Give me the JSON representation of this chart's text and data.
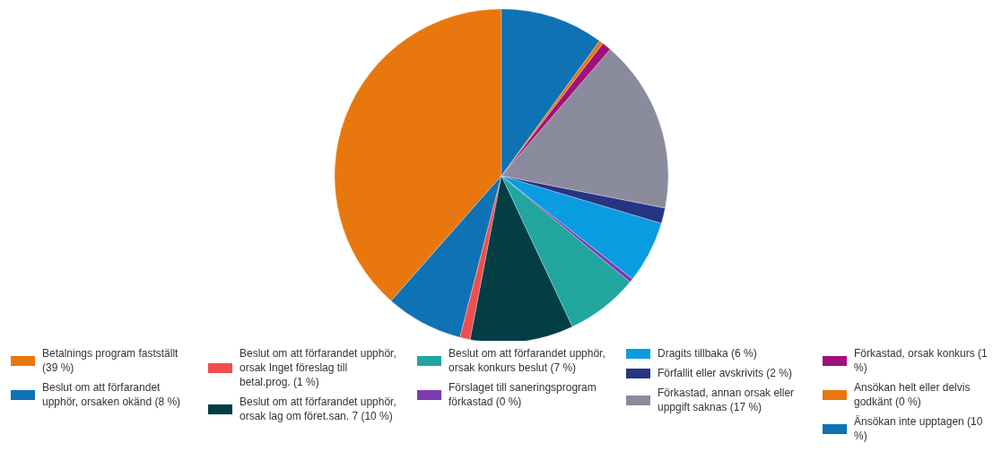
{
  "chart_data": {
    "type": "pie",
    "categories": [
      "Betalnings program fastställt (39 %)",
      "Beslut om att förfarandet upphör, orsaken okänd (8 %)",
      "Beslut om att förfarandet upphör, orsak Inget föreslag till betal.prog. (1 %)",
      "Beslut om att förfarandet upphör, orsak lag om föret.san. 7 (10 %)",
      "Beslut om att förfarandet upphör, orsak konkurs beslut (7 %)",
      "Förslaget till saneringsprogram förkastad (0 %)",
      "Dragits tillbaka (6 %)",
      "Förfallit eller avskrivits (2 %)",
      "Förkastad, annan orsak eller uppgift saknas (17 %)",
      "Förkastad, orsak konkurs (1 %)",
      "Ansökan helt eller delvis godkänt (0 %)",
      "Änsökan inte upptagen (10 %)"
    ],
    "values": [
      38.5,
      7.5,
      1,
      10,
      7,
      0.4,
      6,
      1.5,
      16.8,
      0.9,
      0.4,
      10
    ],
    "colors": [
      "#e8770e",
      "#0e72b5",
      "#f04e4e",
      "#033e45",
      "#21a59f",
      "#7d3bb0",
      "#0a9ce0",
      "#263583",
      "#8b8b9e",
      "#a0117c",
      "#e8770e",
      "#0e72b5"
    ],
    "legend": "bottom"
  }
}
